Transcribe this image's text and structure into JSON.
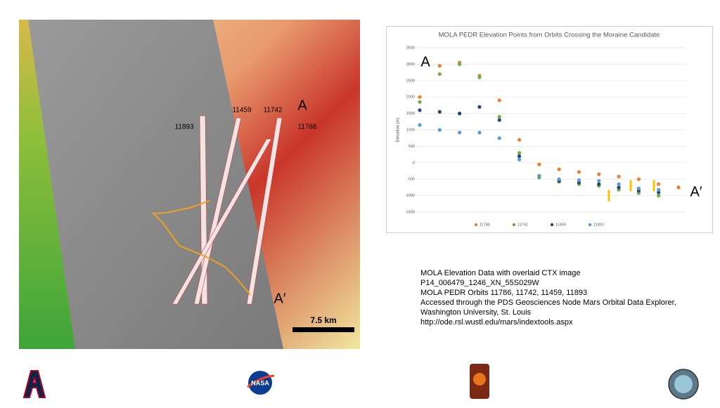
{
  "map": {
    "tracks": [
      "11893",
      "11459",
      "11742",
      "11786"
    ],
    "point_a": "A",
    "point_a_prime": "A′",
    "scale": "7.5 km"
  },
  "chart_data": {
    "type": "scatter-line",
    "title": "MOLA PEDR Elevation Points from Orbits Crossing the Moraine Candidate",
    "y_label": "Elevation (m)",
    "annotations": [
      "A",
      "A′"
    ],
    "categories": [
      null,
      null,
      null,
      null,
      null,
      null,
      null,
      null,
      null,
      null,
      null,
      null,
      null,
      null
    ],
    "series": [
      {
        "name": "11786",
        "color": "#ed7d31",
        "values": [
          2000,
          2950,
          3050,
          2650,
          1900,
          700,
          -50,
          -200,
          -280,
          -350,
          -420,
          -500,
          -650,
          -750
        ]
      },
      {
        "name": "11742",
        "color": "#70ad47",
        "values": [
          1850,
          2700,
          3000,
          2600,
          1400,
          300,
          -450,
          -580,
          -650,
          -700,
          -820,
          -920,
          -1000,
          null
        ]
      },
      {
        "name": "11459",
        "color": "#264478",
        "values": [
          1600,
          1550,
          1500,
          1700,
          1300,
          200,
          -400,
          -550,
          -600,
          -650,
          -750,
          -850,
          -900,
          null
        ]
      },
      {
        "name": "11893",
        "color": "#5b9bd5",
        "values": [
          1150,
          1000,
          920,
          920,
          750,
          100,
          -400,
          -500,
          -530,
          -550,
          -650,
          -780,
          -820,
          null
        ]
      }
    ],
    "ylim": [
      -1500,
      3500
    ],
    "yticks": [
      -1500,
      -1000,
      -500,
      0,
      500,
      1000,
      1500,
      2000,
      2500,
      3000,
      3500
    ],
    "grid": true
  },
  "caption": [
    "MOLA Elevation Data with overlaid CTX image",
    "P14_006479_1246_XN_55S029W",
    "MOLA PEDR Orbits 11786, 11742, 11459, 11893",
    "Accessed through the PDS Geosciences Node Mars Orbital Data Explorer,",
    "Washington University, St. Louis",
    "http://ode.rsl.wustl.edu/mars/indextools.aspx"
  ],
  "logos": {
    "nasa": "NASA"
  }
}
